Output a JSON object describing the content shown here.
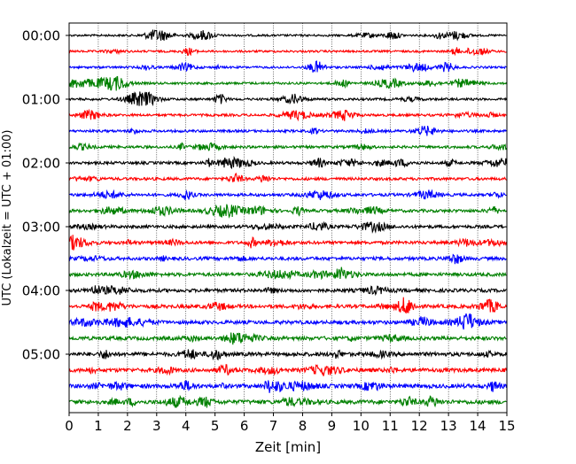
{
  "chart_data": {
    "type": "line",
    "subtype": "helicorder",
    "title": "",
    "xlabel": "Zeit  [min]",
    "ylabel": "UTC (Lokalzeit = UTC + 01:00)",
    "xlim": [
      0,
      15
    ],
    "x_ticks": [
      "0",
      "1",
      "2",
      "3",
      "4",
      "5",
      "6",
      "7",
      "8",
      "9",
      "10",
      "11",
      "12",
      "13",
      "14",
      "15"
    ],
    "y_tick_labels": [
      "00:00",
      "01:00",
      "02:00",
      "03:00",
      "04:00",
      "05:00"
    ],
    "rows_per_hour": 4,
    "row_count": 24,
    "row_colors": [
      "#000000",
      "#ff0000",
      "#0000ff",
      "#008000"
    ],
    "vertical_grid": "dotted",
    "legend": "none"
  }
}
